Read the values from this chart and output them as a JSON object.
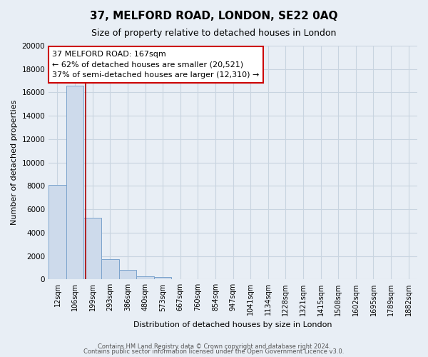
{
  "title": "37, MELFORD ROAD, LONDON, SE22 0AQ",
  "subtitle": "Size of property relative to detached houses in London",
  "xlabel": "Distribution of detached houses by size in London",
  "ylabel": "Number of detached properties",
  "categories": [
    "12sqm",
    "106sqm",
    "199sqm",
    "293sqm",
    "386sqm",
    "480sqm",
    "573sqm",
    "667sqm",
    "760sqm",
    "854sqm",
    "947sqm",
    "1041sqm",
    "1134sqm",
    "1228sqm",
    "1321sqm",
    "1415sqm",
    "1508sqm",
    "1602sqm",
    "1695sqm",
    "1789sqm",
    "1882sqm"
  ],
  "bar_values": [
    8100,
    16600,
    5300,
    1750,
    800,
    280,
    230,
    0,
    0,
    0,
    0,
    0,
    0,
    0,
    0,
    0,
    0,
    0,
    0,
    0,
    0
  ],
  "bar_color": "#cddaeb",
  "bar_edge_color": "#7ba3cc",
  "background_color": "#e8eef5",
  "grid_color": "#c8d4e0",
  "vline_x_index": 1.62,
  "vline_color": "#aa0000",
  "annotation_title": "37 MELFORD ROAD: 167sqm",
  "annotation_line1": "← 62% of detached houses are smaller (20,521)",
  "annotation_line2": "37% of semi-detached houses are larger (12,310) →",
  "annotation_box_color": "#ffffff",
  "annotation_box_edge": "#cc0000",
  "ylim": [
    0,
    20000
  ],
  "yticks": [
    0,
    2000,
    4000,
    6000,
    8000,
    10000,
    12000,
    14000,
    16000,
    18000,
    20000
  ],
  "footer1": "Contains HM Land Registry data © Crown copyright and database right 2024.",
  "footer2": "Contains public sector information licensed under the Open Government Licence v3.0."
}
